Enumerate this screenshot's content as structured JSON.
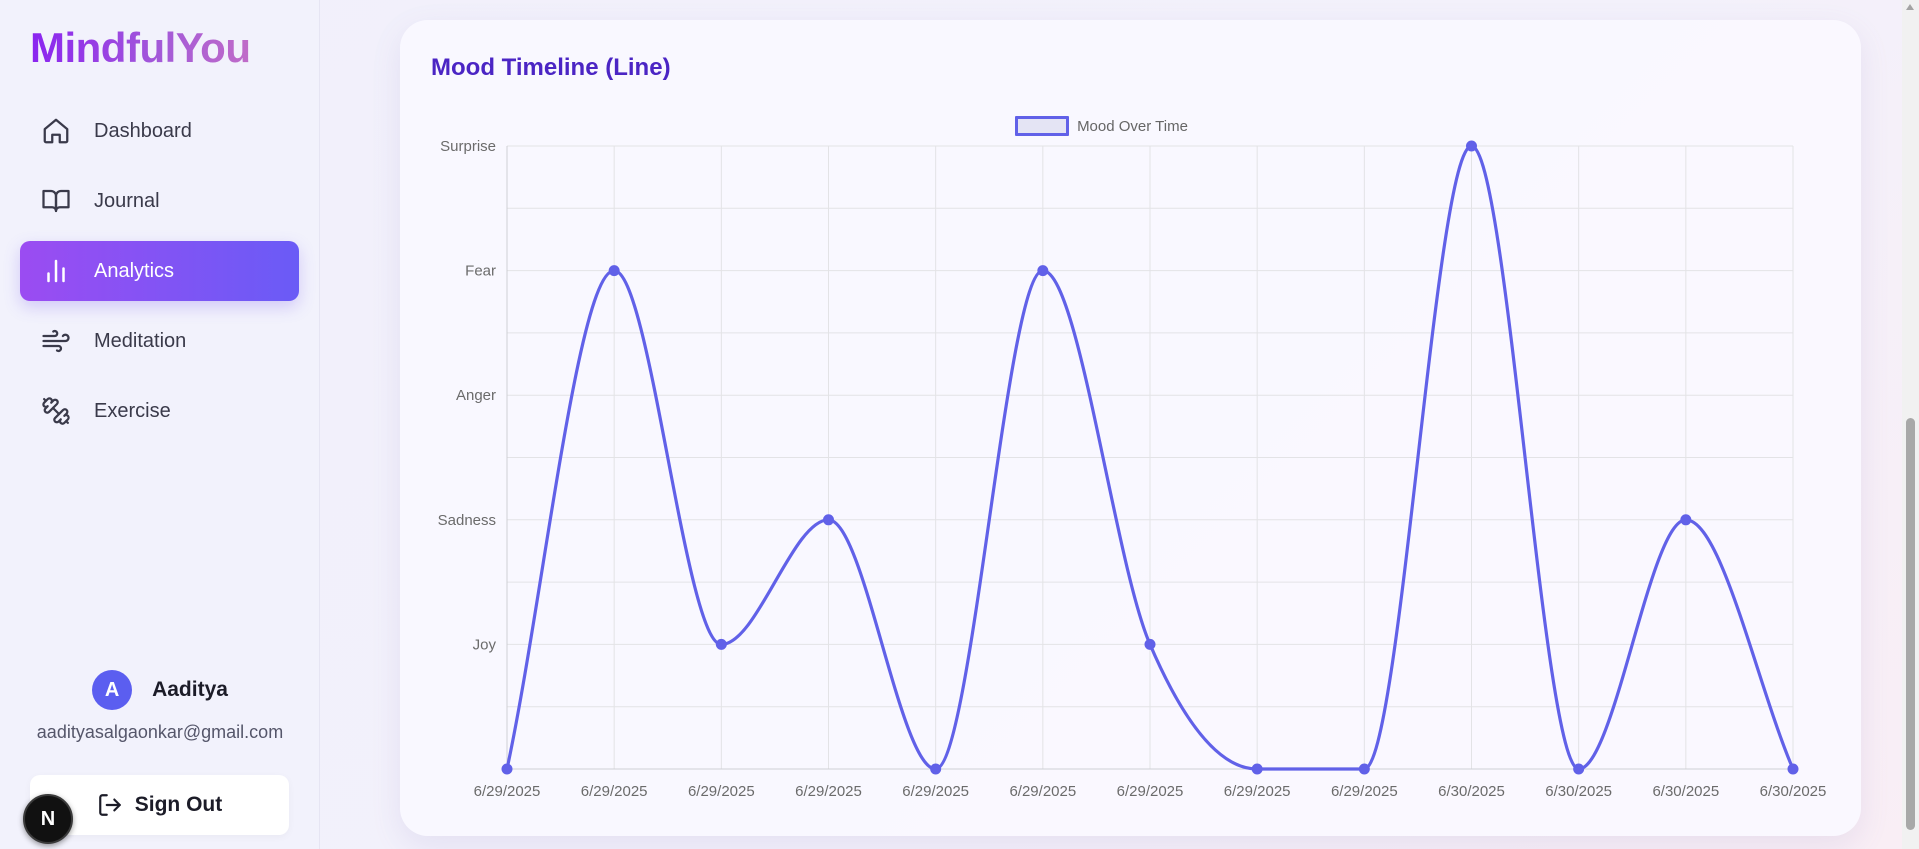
{
  "app": {
    "brand": "MindfulYou"
  },
  "sidebar": {
    "items": [
      {
        "label": "Dashboard",
        "icon": "home-icon",
        "active": false
      },
      {
        "label": "Journal",
        "icon": "book-icon",
        "active": false
      },
      {
        "label": "Analytics",
        "icon": "bar-chart-icon",
        "active": true
      },
      {
        "label": "Meditation",
        "icon": "wind-icon",
        "active": false
      },
      {
        "label": "Exercise",
        "icon": "dumbbell-icon",
        "active": false
      }
    ]
  },
  "user": {
    "initial": "A",
    "name": "Aaditya",
    "email": "aadityasalgaonkar@gmail.com",
    "sign_out_label": "Sign Out"
  },
  "dev_badge": "N",
  "colors": {
    "accent": "#6161e8",
    "brand_gradient_start": "#8a24f0",
    "brand_gradient_end": "#c06cc8",
    "title": "#4b25c4",
    "active_gradient_start": "#9b4cf2",
    "active_gradient_end": "#6a5bf6"
  },
  "card": {
    "title": "Mood Timeline (Line)"
  },
  "chart_data": {
    "type": "line",
    "title": "",
    "legend": {
      "placement": "top-center",
      "label": "Mood Over Time"
    },
    "y_categories": [
      "Joy",
      "Sadness",
      "Anger",
      "Fear",
      "Surprise"
    ],
    "ylim": [
      0,
      5
    ],
    "grid": true,
    "x": [
      "6/29/2025",
      "6/29/2025",
      "6/29/2025",
      "6/29/2025",
      "6/29/2025",
      "6/29/2025",
      "6/29/2025",
      "6/29/2025",
      "6/29/2025",
      "6/30/2025",
      "6/30/2025",
      "6/30/2025",
      "6/30/2025"
    ],
    "series": [
      {
        "name": "Mood Over Time",
        "values": [
          0,
          4,
          1,
          2,
          0,
          4,
          1,
          0,
          0,
          5,
          0,
          2,
          0
        ]
      }
    ]
  }
}
